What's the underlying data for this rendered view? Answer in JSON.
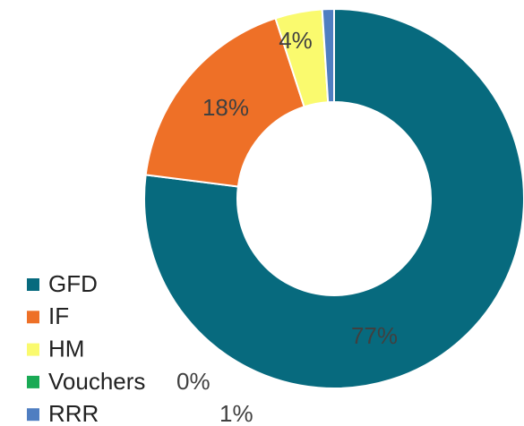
{
  "chart_data": {
    "type": "donut",
    "categories": [
      "GFD",
      "IF",
      "HM",
      "Vouchers",
      "RRR"
    ],
    "values": [
      77,
      18,
      4,
      0,
      1
    ],
    "value_labels": [
      "77%",
      "18%",
      "4%",
      "0%",
      "1%"
    ],
    "colors": [
      "#076a7e",
      "#ee7027",
      "#fafa6e",
      "#1aaa55",
      "#4f7ec1"
    ],
    "legend": "bottom-left"
  }
}
